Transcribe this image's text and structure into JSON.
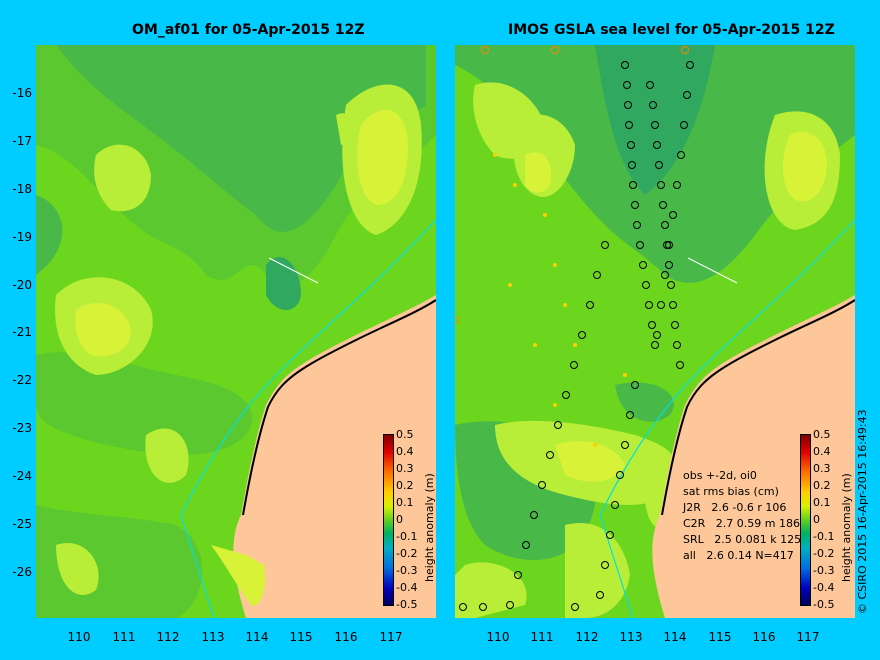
{
  "left_panel": {
    "title": "OM_af01 for 05-Apr-2015 12Z"
  },
  "right_panel": {
    "title": "IMOS GSLA sea level  for 05-Apr-2015 12Z"
  },
  "y_ticks": [
    "-16",
    "-17",
    "-18",
    "-19",
    "-20",
    "-21",
    "-22",
    "-23",
    "-24",
    "-25",
    "-26"
  ],
  "x_ticks": [
    "110",
    "111",
    "112",
    "113",
    "114",
    "115",
    "116",
    "117"
  ],
  "colorbar": {
    "label": "height anomaly (m)",
    "ticks": [
      "0.5",
      "0.4",
      "0.3",
      "0.2",
      "0.1",
      "0",
      "-0.1",
      "-0.2",
      "-0.3",
      "-0.4",
      "-0.5"
    ]
  },
  "stats": {
    "line1": "obs +-2d, oi0",
    "line2": "sat rms bias (cm)",
    "line3": "J2R   2.6 -0.6 r 106",
    "line4": "C2R   2.7 0.59 m 186",
    "line5": "SRL   2.5 0.081 k 125",
    "line6": "all   2.6 0.14 N=417"
  },
  "copyright": "© CSIRO 2015   16-Apr-2015 16:49:43",
  "colors": {
    "land": "#fdc79a",
    "background": "#00ccff",
    "coast": "#00e0e0"
  }
}
